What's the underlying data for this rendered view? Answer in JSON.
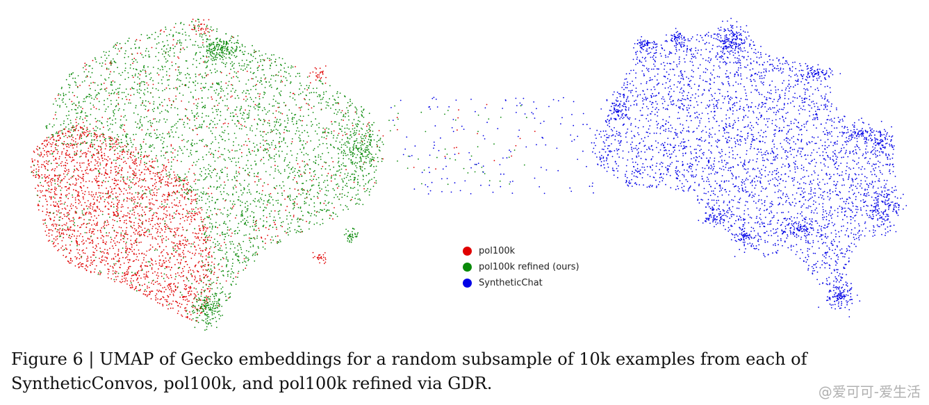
{
  "chart_data": {
    "type": "scatter",
    "title": "",
    "xlabel": "",
    "ylabel": "",
    "axes_visible": false,
    "grid": false,
    "legend_position": "center",
    "series": [
      {
        "name": "pol100k",
        "color": "#e00000"
      },
      {
        "name": "pol100k refined (ours)",
        "color": "#0a8a0a"
      },
      {
        "name": "SyntheticChat",
        "color": "#0000e6"
      }
    ],
    "points_per_series_note": "10k"
  },
  "legend": {
    "items": [
      {
        "label": "pol100k",
        "color": "#e00000"
      },
      {
        "label": "pol100k refined (ours)",
        "color": "#0a8a0a"
      },
      {
        "label": "SyntheticChat",
        "color": "#0000e6"
      }
    ]
  },
  "caption": {
    "text": "Figure 6 | UMAP of Gecko embeddings for a random subsample of 10k examples from each of SyntheticConvos, pol100k, and pol100k refined via GDR."
  },
  "watermark": {
    "text": "@爱可可-爱生活"
  }
}
